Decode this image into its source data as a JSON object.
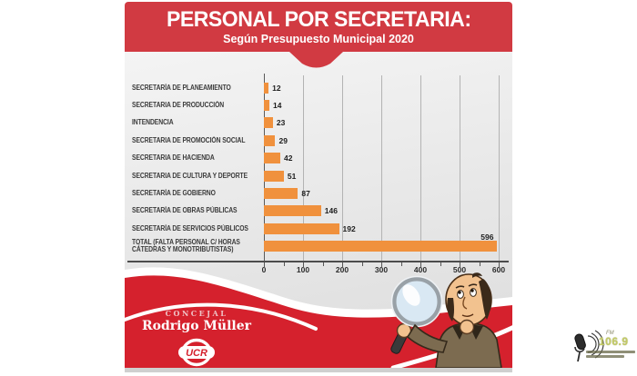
{
  "header": {
    "title": "PERSONAL POR SECRETARIA:",
    "subtitle": "Según Presupuesto Municipal 2020"
  },
  "chart_data": {
    "type": "bar",
    "orientation": "horizontal",
    "title": "PERSONAL POR SECRETARIA:",
    "subtitle": "Según Presupuesto Municipal 2020",
    "categories": [
      "SECRETARÍA DE PLANEAMIENTO",
      "SECRETARIA DE PRODUCCIÓN",
      "INTENDENCIA",
      "SECRETARIA DE PROMOCIÓN SOCIAL",
      "SECRETARIA DE HACIENDA",
      "SECRETARIA DE CULTURA Y DEPORTE",
      "SECRETARÍA DE GOBIERNO",
      "SECRETARÍA DE OBRAS PÚBLICAS",
      "SECRETARÍA DE SERVICIOS PÚBLICOS",
      "TOTAL (FALTA PERSONAL C/ HORAS CÁTEDRAS Y MONOTRIBUTISTAS)"
    ],
    "values": [
      12,
      14,
      23,
      29,
      42,
      51,
      87,
      146,
      192,
      596
    ],
    "value_labels_shown": true,
    "xlim": [
      0,
      600
    ],
    "x_ticks": [
      0,
      100,
      200,
      300,
      400,
      500,
      600
    ],
    "minor_tick_step": 50,
    "grid": true,
    "bar_color": "#f0913d",
    "panel_color": "#e9e9e9"
  },
  "footer": {
    "role": "CONCEJAL",
    "name": "Rodrigo Müller",
    "party": "UCR"
  },
  "watermark": {
    "fm": "FM",
    "number": "106.9"
  },
  "colors": {
    "banner_red": "#d13a42",
    "wave_red": "#d5212d",
    "bar_orange": "#f0913d",
    "axis_gray": "#4c4c4c"
  }
}
